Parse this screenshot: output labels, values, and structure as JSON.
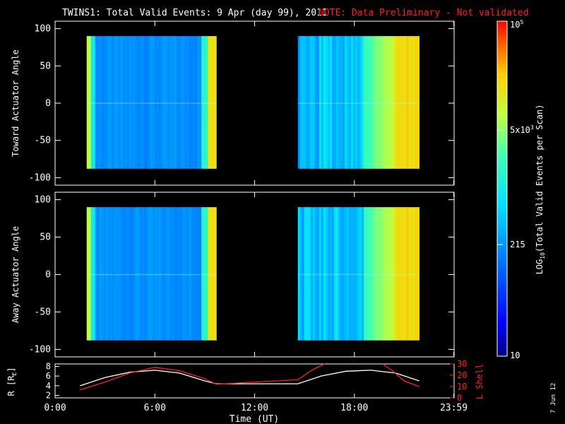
{
  "header": {
    "title": "TWINS1: Total Valid Events:  9 Apr (day  99), 2011",
    "note": "NOTE: Data Preliminary - Not validated"
  },
  "colors": {
    "note": "#ff2020",
    "axis": "#ffffff",
    "r_line": "#ffffff",
    "lshell_line": "#ff2020"
  },
  "colorbar": {
    "label": "LOG10(Total Valid Events per Scan)",
    "label_main": "LOG",
    "label_sub": "10",
    "label_rest": "(Total Valid Events per Scan)",
    "range": [
      10,
      100000
    ],
    "scale": "log",
    "ticks": [
      {
        "value": 10,
        "label": "10"
      },
      {
        "value": 215,
        "label": "215"
      },
      {
        "value": 5000,
        "label": "5x10",
        "sup": "3"
      },
      {
        "value": 100000,
        "label": "10",
        "sup": "5"
      }
    ]
  },
  "chart_data": [
    {
      "type": "heatmap",
      "ylabel": "Toward Actuator Angle",
      "ylim": [
        -110,
        110
      ],
      "yticks": [
        "100",
        "50",
        "0",
        "-50",
        "-100"
      ],
      "ytick_values": [
        100,
        50,
        0,
        -50,
        -100
      ],
      "xlim": [
        0,
        24
      ],
      "y_extent": [
        -88,
        90
      ],
      "data_segments": [
        {
          "start": 1.9,
          "end": 9.7
        },
        {
          "start": 14.6,
          "end": 21.9
        }
      ]
    },
    {
      "type": "heatmap",
      "ylabel": "Away Actuator Angle",
      "ylim": [
        -110,
        110
      ],
      "yticks": [
        "100",
        "50",
        "0",
        "-50",
        "-100"
      ],
      "ytick_values": [
        100,
        50,
        0,
        -50,
        -100
      ],
      "xlim": [
        0,
        24
      ],
      "y_extent": [
        -88,
        90
      ],
      "data_segments": [
        {
          "start": 1.9,
          "end": 9.7
        },
        {
          "start": 14.6,
          "end": 21.9
        }
      ]
    },
    {
      "type": "line",
      "ylabel": "R [R",
      "ylabel_sub": "E",
      "ylabel_end": "]",
      "ylim": [
        1.5,
        8.5
      ],
      "yticks": [
        "8",
        "6",
        "4",
        "2"
      ],
      "ytick_values": [
        8,
        6,
        4,
        2
      ],
      "y2label": "L Shell",
      "y2lim": [
        0,
        30
      ],
      "y2ticks": [
        "30",
        "20",
        "10",
        "0"
      ],
      "y2tick_values": [
        30,
        20,
        10,
        0
      ],
      "xlim": [
        0,
        24
      ],
      "xlabel": "Time (UT)",
      "xticks": [
        "0:00",
        "6:00",
        "12:00",
        "18:00",
        "23:59"
      ],
      "xtick_values": [
        0,
        6,
        12,
        18,
        23.98
      ],
      "series": [
        {
          "name": "R",
          "color": "#ffffff",
          "axis": "left",
          "x": [
            1.5,
            3,
            4.5,
            6,
            7.5,
            9,
            9.7,
            12,
            14.6,
            16,
            17.5,
            19,
            20.5,
            21.9
          ],
          "y": [
            4.0,
            5.7,
            6.8,
            7.2,
            6.6,
            5.0,
            4.4,
            4.4,
            4.4,
            6.0,
            7.0,
            7.2,
            6.6,
            5.0
          ]
        },
        {
          "name": "L Shell",
          "color": "#ff2020",
          "axis": "right",
          "x": [
            1.5,
            3,
            4.5,
            6,
            7.5,
            9,
            9.7,
            12,
            14.6,
            15.5,
            16.2
          ],
          "y": [
            7,
            14,
            22,
            27,
            24,
            17,
            12,
            14,
            16,
            25,
            32
          ]
        },
        {
          "name": "L Shell (post)",
          "color": "#ff2020",
          "axis": "right",
          "x": [
            19.7,
            20.2,
            21,
            21.9
          ],
          "y": [
            32,
            25,
            15,
            10
          ]
        }
      ]
    }
  ],
  "footer": {
    "date_stamp": "7 Jun 12"
  }
}
